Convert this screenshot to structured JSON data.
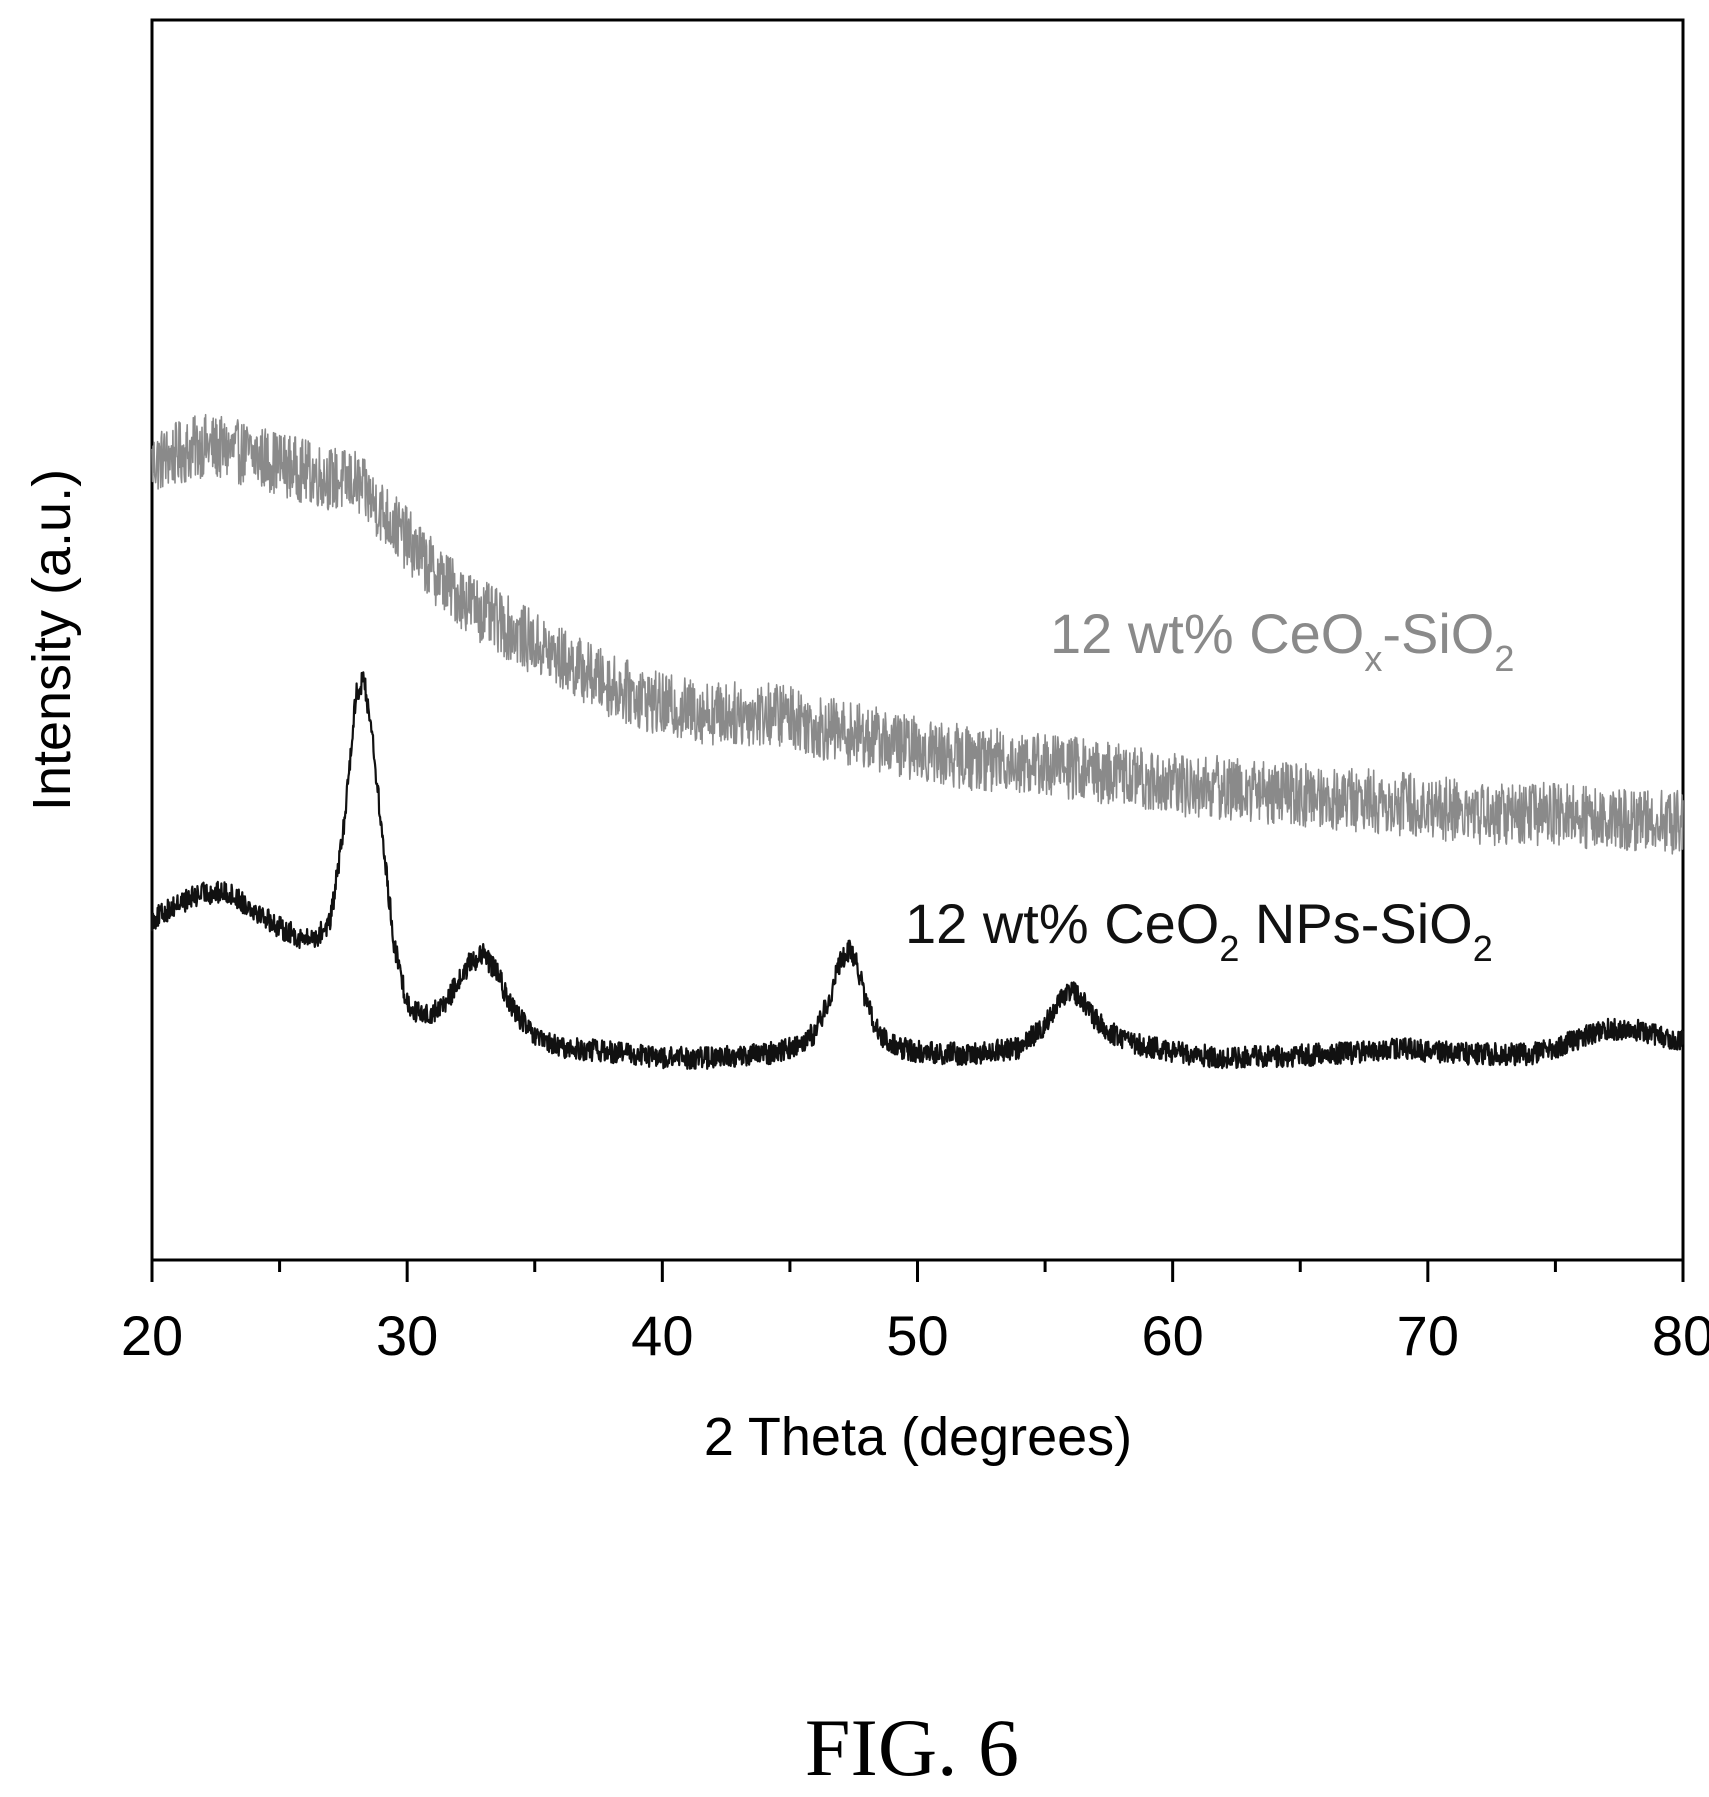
{
  "figure": {
    "caption": "FIG. 6"
  },
  "chart_data": {
    "type": "line",
    "xlabel": "2 Theta (degrees)",
    "ylabel": "Intensity (a.u.)",
    "xlim": [
      20,
      80
    ],
    "ylim": [
      0,
      100
    ],
    "x_ticks_major": [
      20,
      30,
      40,
      50,
      60,
      70,
      80
    ],
    "x_ticks_minor": [
      25,
      35,
      45,
      55,
      65,
      75
    ],
    "y_ticks": [],
    "grid": false,
    "series": [
      {
        "name": "12 wt% CeOx-SiO2",
        "label_main": "12 wt% CeO",
        "label_sub1": "x",
        "label_mid": "-SiO",
        "label_sub2": "2",
        "color": "#8a8a8a",
        "x": [
          20,
          22,
          24,
          26,
          27,
          28,
          29,
          30,
          31,
          32,
          33,
          34,
          35,
          36,
          37,
          38,
          39,
          40,
          42,
          44,
          45,
          46,
          48,
          50,
          52,
          55,
          58,
          60,
          62,
          65,
          68,
          70,
          72,
          75,
          78,
          80
        ],
        "y": [
          64.3,
          65.7,
          64.9,
          63.6,
          63.0,
          62.7,
          60.4,
          58.1,
          55.6,
          53.7,
          52.2,
          50.9,
          49.7,
          48.5,
          47.4,
          46.3,
          45.5,
          44.7,
          44.1,
          44.0,
          44.0,
          43.0,
          42.2,
          41.2,
          40.5,
          40.0,
          39.1,
          38.3,
          38.1,
          37.5,
          37.0,
          36.6,
          36.0,
          35.9,
          35.6,
          35.2
        ]
      },
      {
        "name": "12 wt% CeO2 NPs-SiO2",
        "label_main": "12 wt% CeO",
        "label_sub1": "2",
        "label_mid": " NPs-SiO",
        "label_sub2": "2",
        "color": "#111111",
        "x": [
          20,
          21,
          22,
          23,
          24,
          25,
          26,
          26.5,
          27,
          27.5,
          28,
          28.3,
          28.6,
          29,
          29.5,
          30,
          30.5,
          31,
          31.5,
          32,
          32.5,
          33,
          33.5,
          34,
          35,
          36,
          38,
          40,
          42,
          44,
          45,
          46,
          46.5,
          47,
          47.3,
          47.6,
          48,
          48.5,
          49,
          50,
          52,
          54,
          55,
          55.5,
          56,
          56.5,
          57,
          58,
          60,
          62,
          64,
          66,
          68,
          69,
          70,
          72,
          74,
          75,
          76,
          77,
          78,
          80
        ],
        "y": [
          27.4,
          28.7,
          29.6,
          29.6,
          28.3,
          26.8,
          25.8,
          26.1,
          27.4,
          34.6,
          45.7,
          46.8,
          43.0,
          34.6,
          25.3,
          20.7,
          19.8,
          19.9,
          20.7,
          22.4,
          24.1,
          24.6,
          23.3,
          20.7,
          17.9,
          17.1,
          16.8,
          16.3,
          16.3,
          16.6,
          17.1,
          18.3,
          20.9,
          24.1,
          25.0,
          24.1,
          20.7,
          18.1,
          17.3,
          16.8,
          16.6,
          17.1,
          19.0,
          20.7,
          21.8,
          20.9,
          19.3,
          17.7,
          16.8,
          16.3,
          16.4,
          16.6,
          16.8,
          17.1,
          16.8,
          16.6,
          16.6,
          17.1,
          17.9,
          18.6,
          18.6,
          17.7
        ]
      }
    ]
  }
}
